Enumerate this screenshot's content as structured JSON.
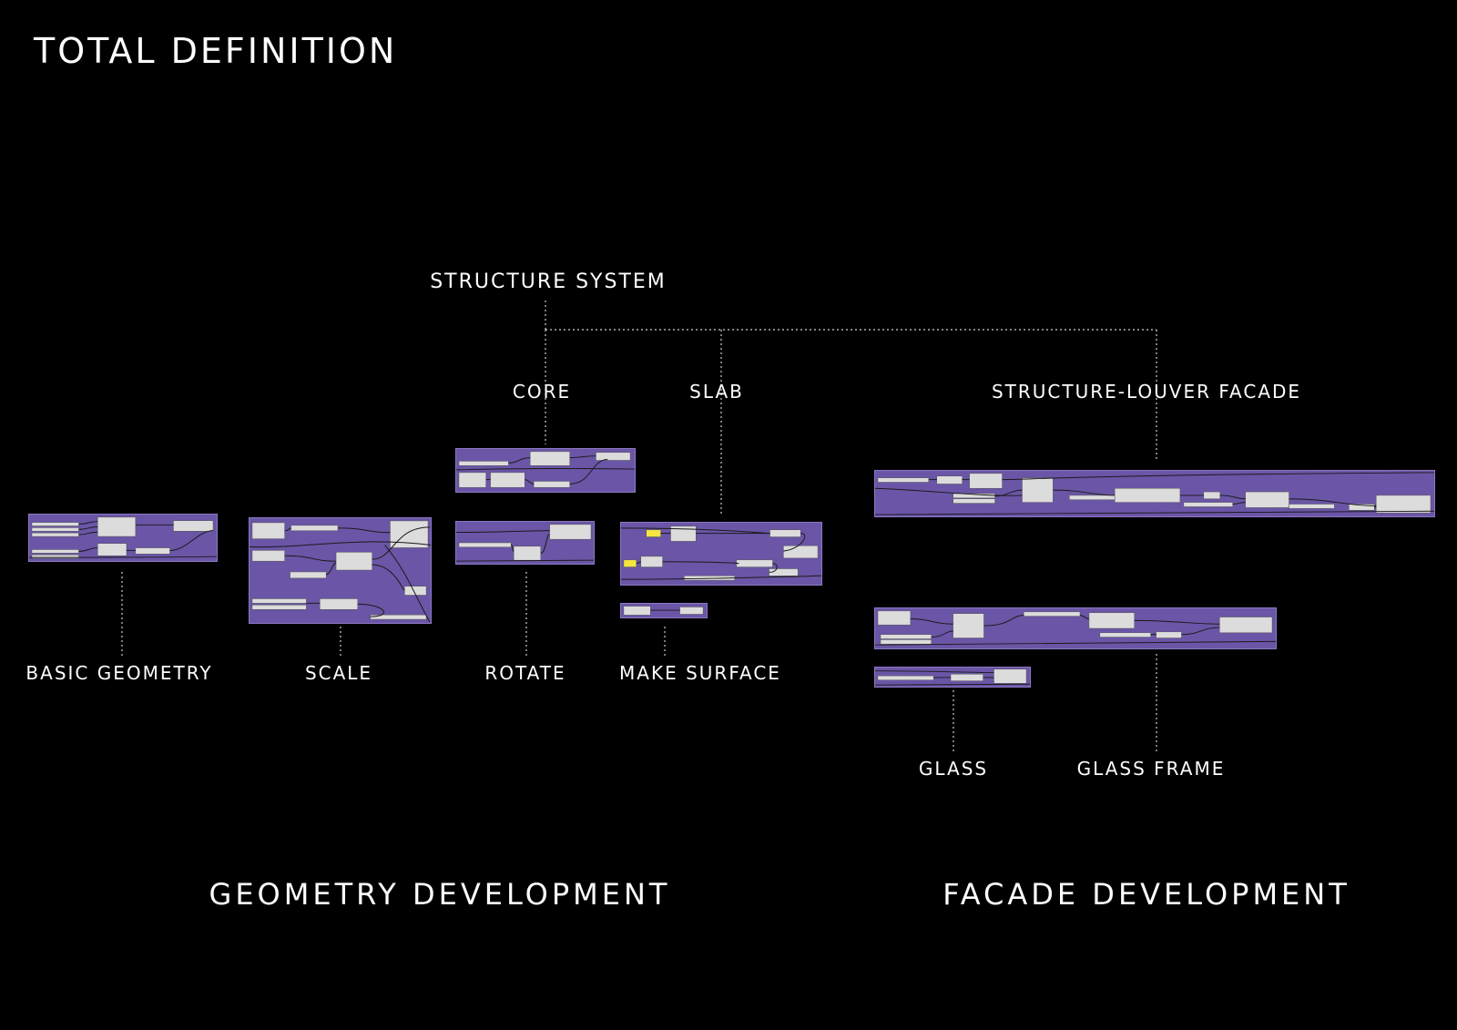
{
  "page": {
    "title": "TOTAL DEFINITION"
  },
  "structure": {
    "root_label": "STRUCTURE SYSTEM",
    "core_label": "CORE",
    "slab_label": "SLAB",
    "louver_label": "STRUCTURE-LOUVER FACADE"
  },
  "geometry": {
    "basic_label": "BASIC GEOMETRY",
    "scale_label": "SCALE",
    "rotate_label": "ROTATE",
    "make_surface_label": "MAKE SURFACE"
  },
  "facade": {
    "glass_label": "GLASS",
    "glass_frame_label": "GLASS FRAME"
  },
  "sections": {
    "geometry_development": "GEOMETRY DEVELOPMENT",
    "facade_development": "FACADE DEVELOPMENT"
  },
  "colors": {
    "background": "#000000",
    "panel": "#6a55a6",
    "node": "#dcdcdc",
    "highlight": "#f5e642",
    "wire": "#1a1a1a",
    "connector": "#cfcfcf"
  }
}
